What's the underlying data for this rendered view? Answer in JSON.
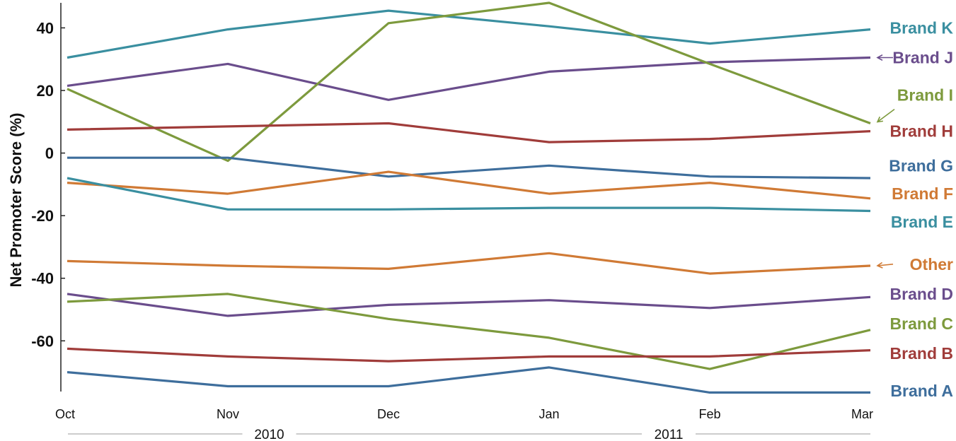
{
  "chart_data": {
    "type": "line",
    "ylabel": "Net Promoter Score (%)",
    "xlabel": "",
    "title": "",
    "x": [
      "Oct",
      "Nov",
      "Dec",
      "Jan",
      "Feb",
      "Mar"
    ],
    "x_groups": [
      {
        "label": "2010",
        "from": 0,
        "to": 2
      },
      {
        "label": "2011",
        "from": 3,
        "to": 5
      }
    ],
    "ylim": [
      -78,
      48
    ],
    "yticks": [
      40,
      20,
      0,
      -20,
      -40,
      -60
    ],
    "grid": false,
    "legend": "direct labels at right end of each line",
    "series": [
      {
        "name": "Brand K",
        "color": "#3a8fa0",
        "values": [
          30.5,
          39.5,
          45.5,
          40.5,
          35,
          39.5
        ]
      },
      {
        "name": "Brand J",
        "color": "#6a4d8c",
        "values": [
          21.5,
          28.5,
          17,
          26,
          29,
          30.5
        ]
      },
      {
        "name": "Brand I",
        "color": "#7d9a3d",
        "values": [
          20.5,
          -2.5,
          41.5,
          48,
          28.5,
          9.5
        ]
      },
      {
        "name": "Brand H",
        "color": "#a03c3a",
        "values": [
          7.5,
          8.5,
          9.5,
          3.5,
          4.5,
          7
        ]
      },
      {
        "name": "Brand G",
        "color": "#3e6e9c",
        "values": [
          -1.5,
          -1.5,
          -7.5,
          -4,
          -7.5,
          -8
        ]
      },
      {
        "name": "Brand F",
        "color": "#d07a35",
        "values": [
          -9.5,
          -13,
          -6,
          -13,
          -9.5,
          -14.5
        ]
      },
      {
        "name": "Brand E",
        "color": "#3a8fa0",
        "values": [
          -8,
          -18,
          -18,
          -17.5,
          -17.5,
          -18.5
        ]
      },
      {
        "name": "Other",
        "color": "#d07a35",
        "values": [
          -34.5,
          -36,
          -37,
          -32,
          -38.5,
          -36
        ]
      },
      {
        "name": "Brand D",
        "color": "#6a4d8c",
        "values": [
          -45,
          -52,
          -48.5,
          -47,
          -49.5,
          -46
        ]
      },
      {
        "name": "Brand C",
        "color": "#7d9a3d",
        "values": [
          -47.5,
          -45,
          -53,
          -59,
          -69,
          -56.5
        ]
      },
      {
        "name": "Brand B",
        "color": "#a03c3a",
        "values": [
          -62.5,
          -65,
          -66.5,
          -65,
          -65,
          -63
        ]
      },
      {
        "name": "Brand A",
        "color": "#3e6e9c",
        "values": [
          -70,
          -74.5,
          -74.5,
          -68.5,
          -76.5,
          -76.5
        ]
      }
    ],
    "label_values": {
      "Brand K": 40,
      "Brand J": 30.5,
      "Brand I": 18.5,
      "Brand H": 7,
      "Brand G": -4,
      "Brand F": -13,
      "Brand E": -22,
      "Other": -35.5,
      "Brand D": -45,
      "Brand C": -54.5,
      "Brand B": -64,
      "Brand A": -76
    },
    "leader_arrows": [
      "Brand J",
      "Brand I",
      "Other"
    ]
  }
}
